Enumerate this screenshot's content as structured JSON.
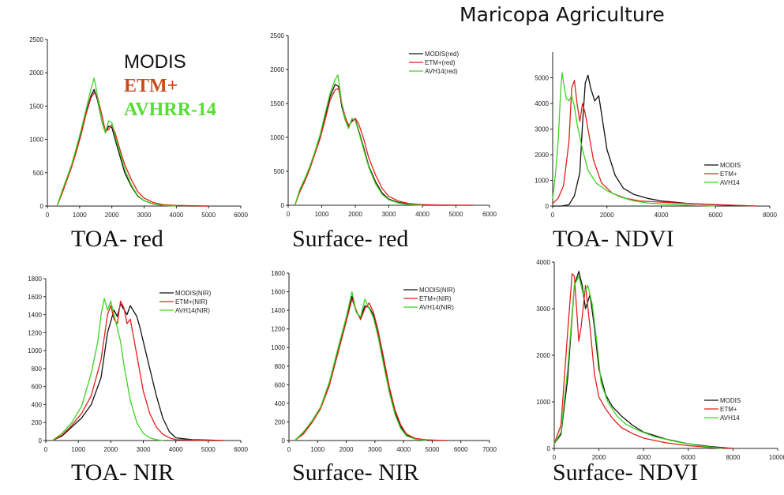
{
  "page": {
    "title": "Maricopa Agriculture"
  },
  "colors": {
    "MODIS": "#111111",
    "ETM": "#e0201b",
    "AVHRR": "#3ad41f",
    "axis": "#222222"
  },
  "big_legend": {
    "modis": "MODIS",
    "etm": "ETM+",
    "avhrr": "AVHRR-14"
  },
  "chart_data": [
    {
      "id": "toa-red",
      "type": "line",
      "caption": "TOA- red",
      "xlim": [
        0,
        6000
      ],
      "ylim": [
        0,
        2500
      ],
      "xticks": [
        "0",
        "1000",
        "2000",
        "3000",
        "4000",
        "5000",
        "6000"
      ],
      "yticks": [
        "0",
        "500",
        "1000",
        "1500",
        "2000",
        "2500"
      ],
      "legend": [],
      "series": [
        {
          "key": "MODIS",
          "x": [
            300,
            450,
            600,
            750,
            900,
            1050,
            1200,
            1350,
            1450,
            1550,
            1700,
            1800,
            1900,
            2000,
            2100,
            2250,
            2400,
            2600,
            2800,
            3000,
            3300,
            3600,
            4000,
            4500,
            5000
          ],
          "y": [
            0,
            200,
            400,
            600,
            850,
            1100,
            1400,
            1650,
            1750,
            1600,
            1250,
            1100,
            1200,
            1180,
            1000,
            750,
            500,
            300,
            150,
            80,
            30,
            10,
            5,
            0,
            0
          ]
        },
        {
          "key": "ETM",
          "x": [
            300,
            450,
            600,
            750,
            900,
            1050,
            1200,
            1350,
            1450,
            1550,
            1700,
            1800,
            1900,
            2000,
            2100,
            2250,
            2400,
            2600,
            2800,
            3000,
            3300,
            3600,
            4000,
            4500,
            5000
          ],
          "y": [
            0,
            180,
            380,
            580,
            820,
            1080,
            1380,
            1620,
            1700,
            1650,
            1350,
            1120,
            1150,
            1220,
            1100,
            850,
            620,
            400,
            220,
            120,
            50,
            20,
            10,
            5,
            0
          ]
        },
        {
          "key": "AVHRR",
          "x": [
            300,
            450,
            600,
            750,
            900,
            1050,
            1200,
            1350,
            1450,
            1500,
            1600,
            1700,
            1800,
            1900,
            2000,
            2100,
            2250,
            2400,
            2600,
            2800,
            3000,
            3300,
            3600,
            4000
          ],
          "y": [
            0,
            220,
            420,
            620,
            880,
            1150,
            1450,
            1750,
            1920,
            1800,
            1500,
            1250,
            1100,
            1280,
            1250,
            1050,
            800,
            550,
            320,
            160,
            80,
            30,
            10,
            0
          ]
        }
      ]
    },
    {
      "id": "surface-red",
      "type": "line",
      "caption": "Surface- red",
      "xlim": [
        0,
        6000
      ],
      "ylim": [
        0,
        2500
      ],
      "xticks": [
        "0",
        "1000",
        "2000",
        "3000",
        "4000",
        "5000",
        "6000"
      ],
      "yticks": [
        "0",
        "500",
        "1000",
        "1500",
        "2000",
        "2500"
      ],
      "legend": [
        "MODIS(red)",
        "ETM+(red)",
        "AVH14(red)"
      ],
      "series": [
        {
          "key": "MODIS",
          "x": [
            200,
            350,
            500,
            650,
            800,
            950,
            1100,
            1250,
            1400,
            1500,
            1600,
            1700,
            1800,
            1900,
            2000,
            2100,
            2250,
            2400,
            2600,
            2800,
            3000,
            3300,
            3600,
            4000,
            4500,
            5500
          ],
          "y": [
            0,
            220,
            380,
            560,
            780,
            1000,
            1300,
            1600,
            1780,
            1750,
            1450,
            1250,
            1150,
            1250,
            1270,
            1100,
            850,
            580,
            350,
            180,
            90,
            40,
            15,
            5,
            0,
            0
          ]
        },
        {
          "key": "ETM",
          "x": [
            200,
            350,
            500,
            650,
            800,
            950,
            1100,
            1250,
            1400,
            1500,
            1600,
            1700,
            1800,
            1900,
            2000,
            2100,
            2250,
            2400,
            2600,
            2800,
            3000,
            3300,
            3600,
            4000,
            4500,
            5500
          ],
          "y": [
            0,
            200,
            360,
            540,
            760,
            980,
            1260,
            1550,
            1700,
            1720,
            1500,
            1300,
            1180,
            1230,
            1280,
            1200,
            980,
            700,
            450,
            250,
            130,
            60,
            25,
            10,
            5,
            0
          ]
        },
        {
          "key": "AVHRR",
          "x": [
            200,
            350,
            500,
            650,
            800,
            950,
            1100,
            1250,
            1400,
            1480,
            1600,
            1700,
            1800,
            1900,
            2000,
            2100,
            2250,
            2400,
            2600,
            2800,
            3000,
            3300,
            3600,
            4000
          ],
          "y": [
            0,
            240,
            400,
            580,
            800,
            1040,
            1350,
            1650,
            1850,
            1920,
            1500,
            1250,
            1130,
            1280,
            1250,
            1080,
            820,
            560,
            320,
            160,
            80,
            30,
            10,
            0
          ]
        }
      ]
    },
    {
      "id": "toa-ndvi",
      "type": "line",
      "caption": "TOA- NDVI",
      "xlim": [
        0,
        8000
      ],
      "ylim": [
        0,
        6000
      ],
      "xticks": [
        "0",
        "2000",
        "4000",
        "6000",
        "8000"
      ],
      "yticks": [
        "0",
        "1000",
        "2000",
        "3000",
        "4000",
        "5000"
      ],
      "legend": [
        "MODIS",
        "ETM+",
        "AVH14"
      ],
      "series": [
        {
          "key": "MODIS",
          "x": [
            0,
            300,
            600,
            800,
            1000,
            1100,
            1200,
            1300,
            1400,
            1550,
            1700,
            1800,
            2000,
            2300,
            2600,
            3000,
            3500,
            4000,
            5000,
            6000,
            7000,
            7500
          ],
          "y": [
            0,
            0,
            50,
            400,
            1300,
            3200,
            4800,
            5100,
            4600,
            4100,
            4300,
            3600,
            2200,
            1200,
            700,
            450,
            300,
            200,
            100,
            50,
            20,
            0
          ]
        },
        {
          "key": "ETM",
          "x": [
            0,
            200,
            400,
            600,
            700,
            800,
            900,
            1000,
            1100,
            1200,
            1300,
            1500,
            1800,
            2200,
            2700,
            3200,
            4000,
            5000,
            6000,
            7000,
            7500
          ],
          "y": [
            100,
            300,
            800,
            2500,
            4600,
            4900,
            4000,
            3300,
            4000,
            3600,
            3000,
            1800,
            900,
            500,
            300,
            200,
            150,
            100,
            60,
            20,
            0
          ]
        },
        {
          "key": "AVHRR",
          "x": [
            0,
            100,
            200,
            300,
            350,
            400,
            500,
            600,
            700,
            800,
            900,
            1100,
            1300,
            1600,
            2000,
            2500,
            3000,
            3500,
            4000,
            5000,
            6000
          ],
          "y": [
            300,
            1200,
            2500,
            4600,
            5200,
            4800,
            4200,
            4100,
            4300,
            3900,
            3200,
            2200,
            1400,
            900,
            600,
            350,
            200,
            120,
            80,
            30,
            0
          ]
        }
      ]
    },
    {
      "id": "toa-nir",
      "type": "line",
      "caption": "TOA- NIR",
      "xlim": [
        0,
        6000
      ],
      "ylim": [
        0,
        1800
      ],
      "xticks": [
        "0",
        "1000",
        "2000",
        "3000",
        "4000",
        "5000",
        "6000"
      ],
      "yticks": [
        "0",
        "200",
        "400",
        "600",
        "800",
        "1000",
        "1200",
        "1400",
        "1600",
        "1800"
      ],
      "legend": [
        "MODIS(NIR)",
        "ETM+(NIR)",
        "AVH14(NIR)"
      ],
      "series": [
        {
          "key": "MODIS",
          "x": [
            200,
            500,
            800,
            1100,
            1400,
            1700,
            1900,
            2100,
            2200,
            2300,
            2400,
            2500,
            2600,
            2700,
            2800,
            2900,
            3000,
            3200,
            3400,
            3600,
            3800,
            4000,
            4500,
            5000,
            5500
          ],
          "y": [
            0,
            50,
            150,
            250,
            400,
            700,
            1200,
            1450,
            1380,
            1520,
            1460,
            1400,
            1500,
            1440,
            1380,
            1250,
            1100,
            800,
            500,
            250,
            100,
            30,
            10,
            5,
            0
          ]
        },
        {
          "key": "ETM",
          "x": [
            200,
            500,
            800,
            1100,
            1400,
            1700,
            1900,
            2000,
            2100,
            2200,
            2300,
            2400,
            2500,
            2600,
            2700,
            2800,
            2900,
            3000,
            3200,
            3400,
            3600,
            3800,
            4000,
            4500,
            5000,
            5500
          ],
          "y": [
            0,
            60,
            170,
            300,
            500,
            900,
            1400,
            1500,
            1350,
            1300,
            1550,
            1480,
            1300,
            1350,
            1150,
            950,
            750,
            550,
            300,
            150,
            70,
            30,
            10,
            5,
            0,
            0
          ]
        },
        {
          "key": "AVHRR",
          "x": [
            200,
            500,
            800,
            1100,
            1400,
            1600,
            1700,
            1800,
            1900,
            2000,
            2100,
            2200,
            2300,
            2400,
            2600,
            2800,
            3000,
            3200,
            3400,
            3600
          ],
          "y": [
            0,
            80,
            200,
            380,
            750,
            1100,
            1400,
            1580,
            1450,
            1550,
            1400,
            1250,
            1100,
            850,
            450,
            200,
            80,
            30,
            10,
            0
          ]
        }
      ]
    },
    {
      "id": "surface-nir",
      "type": "line",
      "caption": "Surface- NIR",
      "xlim": [
        0,
        7000
      ],
      "ylim": [
        0,
        1800
      ],
      "xticks": [
        "0",
        "1000",
        "2000",
        "3000",
        "4000",
        "5000",
        "6000",
        "7000"
      ],
      "yticks": [
        "0",
        "200",
        "400",
        "600",
        "800",
        "1000",
        "1200",
        "1400",
        "1600",
        "1800"
      ],
      "legend": [
        "MODIS(NIR)",
        "ETM+(NIR)",
        "AVH14(NIR)"
      ],
      "series": [
        {
          "key": "MODIS",
          "x": [
            200,
            500,
            800,
            1100,
            1400,
            1700,
            2000,
            2200,
            2350,
            2500,
            2650,
            2800,
            2950,
            3100,
            3300,
            3500,
            3700,
            3900,
            4100,
            4400,
            4800,
            5500
          ],
          "y": [
            0,
            80,
            200,
            350,
            600,
            950,
            1300,
            1550,
            1380,
            1320,
            1450,
            1430,
            1350,
            1150,
            850,
            550,
            300,
            150,
            60,
            20,
            5,
            0
          ]
        },
        {
          "key": "ETM",
          "x": [
            200,
            500,
            800,
            1100,
            1400,
            1700,
            2000,
            2200,
            2350,
            2500,
            2650,
            2800,
            2950,
            3100,
            3300,
            3500,
            3700,
            3900,
            4100,
            4400,
            4800,
            5500
          ],
          "y": [
            0,
            70,
            190,
            340,
            580,
            930,
            1280,
            1520,
            1400,
            1300,
            1420,
            1480,
            1380,
            1200,
            900,
            580,
            330,
            170,
            70,
            25,
            8,
            0
          ]
        },
        {
          "key": "AVHRR",
          "x": [
            200,
            500,
            800,
            1100,
            1400,
            1700,
            2000,
            2200,
            2350,
            2500,
            2650,
            2800,
            2950,
            3100,
            3300,
            3500,
            3700,
            3900,
            4100,
            4400,
            4800
          ],
          "y": [
            0,
            90,
            210,
            360,
            620,
            980,
            1330,
            1600,
            1380,
            1330,
            1520,
            1420,
            1320,
            1130,
            820,
            520,
            280,
            130,
            50,
            15,
            0
          ]
        }
      ]
    },
    {
      "id": "surface-ndvi",
      "type": "line",
      "caption": "Surface- NDVI",
      "xlim": [
        0,
        10000
      ],
      "ylim": [
        0,
        4000
      ],
      "xticks": [
        "0",
        "2000",
        "4000",
        "6000",
        "8000",
        "10000"
      ],
      "yticks": [
        "0",
        "1000",
        "2000",
        "3000",
        "4000"
      ],
      "legend": [
        "MODIS",
        "ETM+",
        "AVH14"
      ],
      "series": [
        {
          "key": "MODIS",
          "x": [
            0,
            300,
            600,
            900,
            1100,
            1250,
            1400,
            1600,
            1800,
            2000,
            2300,
            2600,
            3000,
            3500,
            4000,
            5000,
            6000,
            7000,
            8000
          ],
          "y": [
            100,
            300,
            1500,
            3500,
            3800,
            3500,
            3000,
            3300,
            2600,
            1700,
            1150,
            900,
            700,
            500,
            350,
            200,
            100,
            40,
            0
          ]
        },
        {
          "key": "ETM",
          "x": [
            0,
            300,
            600,
            800,
            900,
            1100,
            1200,
            1400,
            1600,
            1800,
            2000,
            2300,
            2600,
            3000,
            3500,
            4000,
            5000,
            6000,
            7000,
            8000
          ],
          "y": [
            100,
            500,
            2500,
            3750,
            3700,
            2300,
            2600,
            3500,
            2600,
            1600,
            1100,
            850,
            650,
            450,
            320,
            220,
            120,
            60,
            20,
            0
          ]
        },
        {
          "key": "AVHRR",
          "x": [
            0,
            300,
            600,
            900,
            1100,
            1300,
            1500,
            1700,
            1900,
            2100,
            2400,
            2800,
            3200,
            3800,
            4500,
            5500,
            6500,
            7500
          ],
          "y": [
            100,
            350,
            1700,
            3500,
            3700,
            3300,
            3500,
            3100,
            2300,
            1400,
            1000,
            700,
            520,
            380,
            250,
            140,
            60,
            0
          ]
        }
      ]
    }
  ]
}
